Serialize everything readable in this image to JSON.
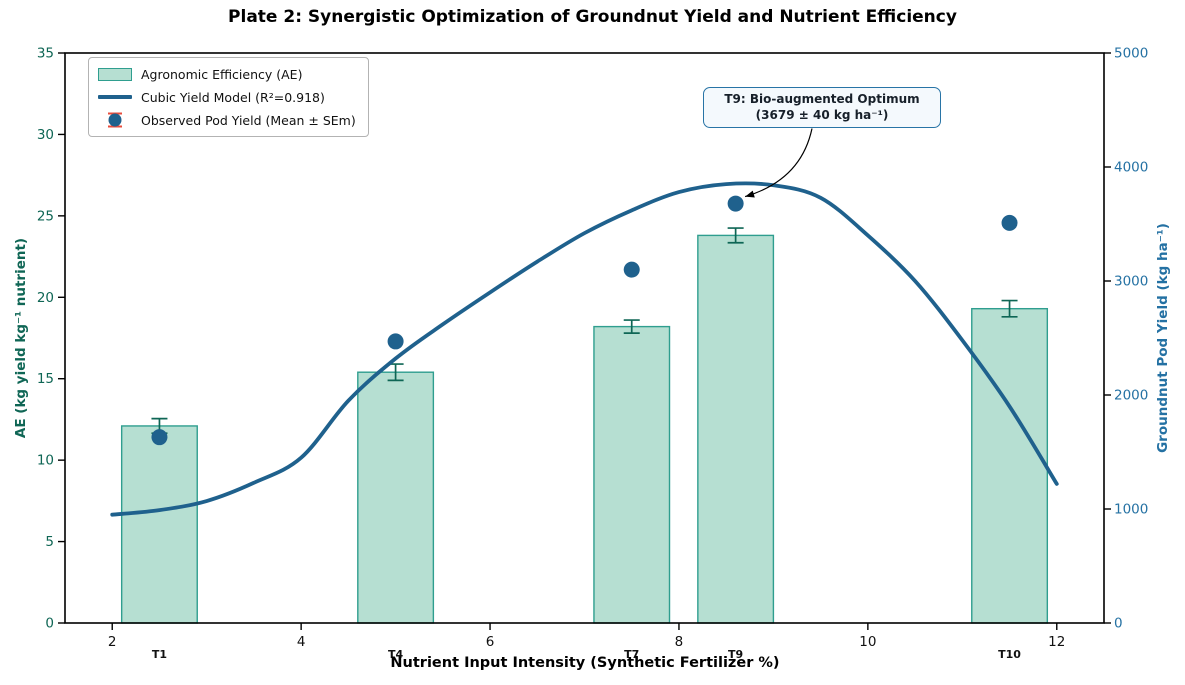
{
  "chart_data": {
    "type": "combo",
    "subtypes": [
      "bar",
      "line",
      "scatter"
    ],
    "title": "Plate 2: Synergistic Optimization of Groundnut Yield and Nutrient Efficiency",
    "xlabel": "Nutrient Input Intensity (Synthetic Fertilizer %)",
    "ylabel_left": "AE (kg yield kg⁻¹ nutrient)",
    "ylabel_right": "Groundnut Pod Yield (kg ha⁻¹)",
    "x_range": [
      1.5,
      12.5
    ],
    "x_ticks": [
      2,
      4,
      6,
      8,
      10,
      12
    ],
    "y_left_range": [
      0,
      35
    ],
    "y_left_ticks": [
      0,
      5,
      10,
      15,
      20,
      25,
      30,
      35
    ],
    "y_right_range": [
      0,
      5000
    ],
    "y_right_ticks": [
      0,
      1000,
      2000,
      3000,
      4000,
      5000
    ],
    "grid": false,
    "legend_position": "upper left",
    "treatments": [
      "T1",
      "T4",
      "T7",
      "T9",
      "T10"
    ],
    "treatment_x": [
      2.5,
      5.0,
      7.5,
      8.6,
      11.5
    ],
    "bars": {
      "label": "Agronomic Efficiency (AE)",
      "axis": "left",
      "width": 0.8,
      "values": [
        12.1,
        15.4,
        18.2,
        23.8,
        19.3
      ],
      "errors": [
        0.45,
        0.5,
        0.4,
        0.45,
        0.5
      ]
    },
    "curve": {
      "label": "Cubic Yield Model (R²=0.918)",
      "axis": "right",
      "points": [
        [
          2,
          950
        ],
        [
          2.5,
          990
        ],
        [
          3,
          1070
        ],
        [
          3.5,
          1230
        ],
        [
          4,
          1450
        ],
        [
          4.5,
          1950
        ],
        [
          5,
          2320
        ],
        [
          5.5,
          2620
        ],
        [
          6,
          2900
        ],
        [
          6.5,
          3170
        ],
        [
          7,
          3420
        ],
        [
          7.5,
          3620
        ],
        [
          8,
          3780
        ],
        [
          8.5,
          3850
        ],
        [
          9,
          3840
        ],
        [
          9.5,
          3730
        ],
        [
          10,
          3400
        ],
        [
          10.5,
          3000
        ],
        [
          11,
          2480
        ],
        [
          11.5,
          1900
        ],
        [
          12,
          1220
        ]
      ]
    },
    "scatter": {
      "label": "Observed Pod Yield (Mean ± SEm)",
      "axis": "right",
      "values": [
        1630,
        2470,
        3100,
        3679,
        3510
      ],
      "errors": [
        40,
        40,
        40,
        40,
        40
      ]
    },
    "annotation": {
      "line1": "T9: Bio-augmented Optimum",
      "line2": "(3679 ± 40 kg ha⁻¹)",
      "target_treatment": "T9"
    },
    "colors": {
      "bar_fill": "#b6dfd2",
      "bar_edge": "#2f9e8f",
      "bar_error": "#0e6655",
      "curve": "#1f618d",
      "dot": "#1f618d",
      "dot_error": "#e74c3c",
      "left_axis": "#0f6655",
      "right_axis": "#2471a3",
      "annotation_border": "#2874a6",
      "annotation_bg": "#f4f9fd",
      "spine": "#000000"
    }
  }
}
